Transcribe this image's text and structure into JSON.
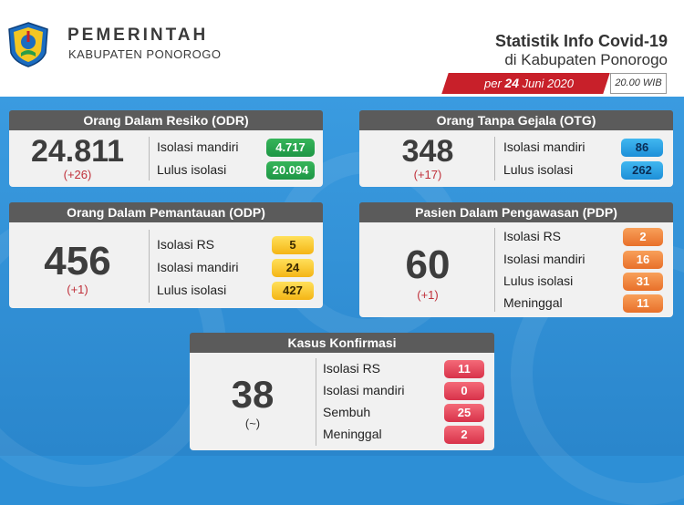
{
  "header": {
    "org_line1": "PEMERINTAH",
    "org_line2": "KABUPATEN PONOROGO",
    "stat_title": "Statistik Info Covid-19",
    "stat_subtitle": "di Kabupaten Ponorogo",
    "date_prefix": "per ",
    "date_day": "24",
    "date_rest": " Juni 2020",
    "time": "20.00 WIB"
  },
  "odr": {
    "title": "Orang Dalam Resiko (ODR)",
    "total": "24.811",
    "delta": "(+26)",
    "rows": [
      {
        "label": "Isolasi mandiri",
        "value": "4.717"
      },
      {
        "label": "Lulus isolasi",
        "value": "20.094"
      }
    ]
  },
  "otg": {
    "title": "Orang Tanpa Gejala (OTG)",
    "total": "348",
    "delta": "(+17)",
    "rows": [
      {
        "label": "Isolasi mandiri",
        "value": "86"
      },
      {
        "label": "Lulus isolasi",
        "value": "262"
      }
    ]
  },
  "odp": {
    "title": "Orang Dalam Pemantauan (ODP)",
    "total": "456",
    "delta": "(+1)",
    "rows": [
      {
        "label": "Isolasi RS",
        "value": "5"
      },
      {
        "label": "Isolasi mandiri",
        "value": "24"
      },
      {
        "label": "Lulus isolasi",
        "value": "427"
      }
    ]
  },
  "pdp": {
    "title": "Pasien Dalam Pengawasan (PDP)",
    "total": "60",
    "delta": "(+1)",
    "rows": [
      {
        "label": "Isolasi RS",
        "value": "2"
      },
      {
        "label": "Isolasi mandiri",
        "value": "16"
      },
      {
        "label": "Lulus isolasi",
        "value": "31"
      },
      {
        "label": "Meninggal",
        "value": "11"
      }
    ]
  },
  "konfirmasi": {
    "title": "Kasus Konfirmasi",
    "total": "38",
    "delta": "(~)",
    "rows": [
      {
        "label": "Isolasi RS",
        "value": "11"
      },
      {
        "label": "Isolasi mandiri",
        "value": "0"
      },
      {
        "label": "Sembuh",
        "value": "25"
      },
      {
        "label": "Meninggal",
        "value": "2"
      }
    ]
  },
  "colors": {
    "odr_badge": "#1e9645",
    "otg_badge": "#1d8fd8",
    "odp_badge": "#f4b515",
    "pdp_badge": "#e8702a",
    "konfirmasi_badge": "#d8324a",
    "ribbon": "#c8202a"
  },
  "icons": {
    "logo": "ponorogo-regency-emblem"
  }
}
